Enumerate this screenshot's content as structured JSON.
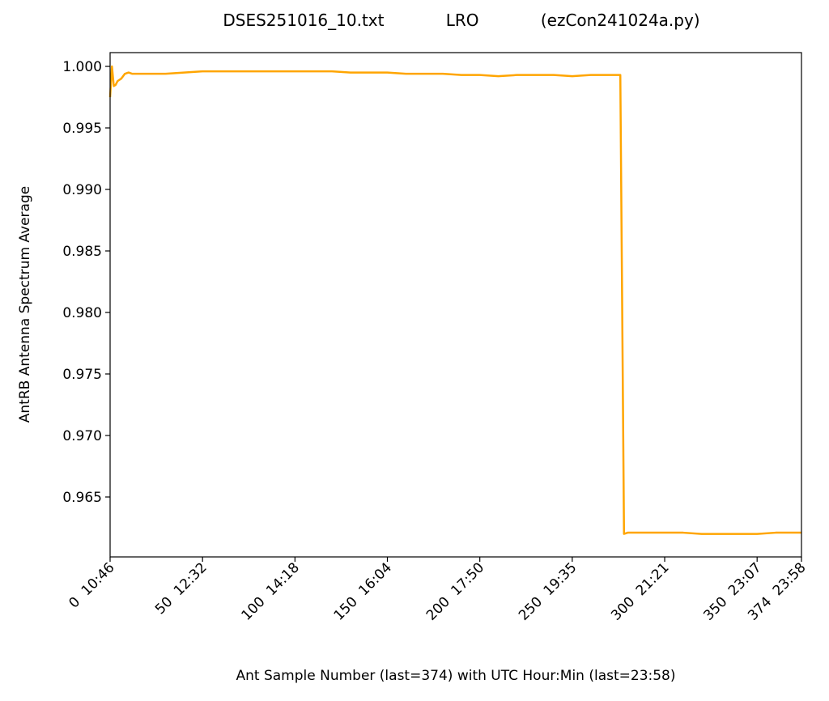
{
  "chart_data": {
    "type": "line",
    "title": "DSES251016_10.txt            LRO            (ezCon241024a.py)",
    "x_label": "Ant Sample Number (last=374) with UTC Hour:Min (last=23:58)",
    "y_label": "AntRB Antenna Spectrum Average",
    "xlim": [
      0,
      374
    ],
    "ylim": [
      0.96013,
      1.00112
    ],
    "xticks": [
      {
        "value": 0,
        "label": "0  10:46"
      },
      {
        "value": 50,
        "label": "50  12:32"
      },
      {
        "value": 100,
        "label": "100  14:18"
      },
      {
        "value": 150,
        "label": "150  16:04"
      },
      {
        "value": 200,
        "label": "200  17:50"
      },
      {
        "value": 250,
        "label": "250  19:35"
      },
      {
        "value": 300,
        "label": "300  21:21"
      },
      {
        "value": 350,
        "label": "350  23:07"
      },
      {
        "value": 374,
        "label": "374  23:58"
      }
    ],
    "yticks": [
      0.965,
      {
        "value": 0.97,
        "label": "0.970"
      },
      0.975,
      {
        "value": 0.98,
        "label": "0.980"
      },
      0.985,
      {
        "value": 0.99,
        "label": "0.990"
      },
      0.995,
      {
        "value": 1,
        "label": "1.000"
      }
    ],
    "grid": false,
    "series": [
      {
        "color": "#FFA500",
        "x": [
          0,
          1,
          2,
          3,
          4,
          6,
          8,
          10,
          12,
          20,
          30,
          40,
          50,
          60,
          70,
          80,
          90,
          100,
          110,
          120,
          130,
          140,
          150,
          160,
          170,
          180,
          190,
          200,
          210,
          220,
          230,
          240,
          250,
          260,
          270,
          276,
          278,
          280,
          290,
          300,
          310,
          320,
          330,
          340,
          350,
          360,
          370,
          374
        ],
        "values": [
          0.9975,
          1.0,
          0.9984,
          0.9985,
          0.9988,
          0.999,
          0.9994,
          0.9995,
          0.9994,
          0.9994,
          0.9994,
          0.9995,
          0.9996,
          0.9996,
          0.9996,
          0.9996,
          0.9996,
          0.9996,
          0.9996,
          0.9996,
          0.9995,
          0.9995,
          0.9995,
          0.9994,
          0.9994,
          0.9994,
          0.9993,
          0.9993,
          0.9992,
          0.9993,
          0.9993,
          0.9993,
          0.9992,
          0.9993,
          0.9993,
          0.9993,
          0.962,
          0.9621,
          0.9621,
          0.9621,
          0.9621,
          0.962,
          0.962,
          0.962,
          0.962,
          0.9621,
          0.9621,
          0.9621
        ]
      }
    ]
  }
}
